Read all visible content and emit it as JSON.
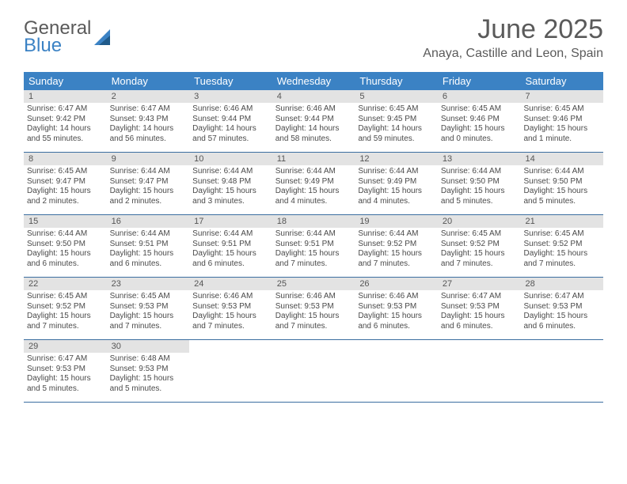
{
  "brand": {
    "line1": "General",
    "line2": "Blue",
    "sail_color": "#3b82c4"
  },
  "header": {
    "month_title": "June 2025",
    "location": "Anaya, Castille and Leon, Spain"
  },
  "colors": {
    "header_bar": "#3b82c4",
    "header_text": "#ffffff",
    "daynum_bg": "#e3e3e3",
    "rule": "#3b6ea0",
    "text": "#4a4a4a"
  },
  "days_of_week": [
    "Sunday",
    "Monday",
    "Tuesday",
    "Wednesday",
    "Thursday",
    "Friday",
    "Saturday"
  ],
  "weeks": [
    [
      {
        "n": "1",
        "sr": "Sunrise: 6:47 AM",
        "ss": "Sunset: 9:42 PM",
        "dl": "Daylight: 14 hours and 55 minutes."
      },
      {
        "n": "2",
        "sr": "Sunrise: 6:47 AM",
        "ss": "Sunset: 9:43 PM",
        "dl": "Daylight: 14 hours and 56 minutes."
      },
      {
        "n": "3",
        "sr": "Sunrise: 6:46 AM",
        "ss": "Sunset: 9:44 PM",
        "dl": "Daylight: 14 hours and 57 minutes."
      },
      {
        "n": "4",
        "sr": "Sunrise: 6:46 AM",
        "ss": "Sunset: 9:44 PM",
        "dl": "Daylight: 14 hours and 58 minutes."
      },
      {
        "n": "5",
        "sr": "Sunrise: 6:45 AM",
        "ss": "Sunset: 9:45 PM",
        "dl": "Daylight: 14 hours and 59 minutes."
      },
      {
        "n": "6",
        "sr": "Sunrise: 6:45 AM",
        "ss": "Sunset: 9:46 PM",
        "dl": "Daylight: 15 hours and 0 minutes."
      },
      {
        "n": "7",
        "sr": "Sunrise: 6:45 AM",
        "ss": "Sunset: 9:46 PM",
        "dl": "Daylight: 15 hours and 1 minute."
      }
    ],
    [
      {
        "n": "8",
        "sr": "Sunrise: 6:45 AM",
        "ss": "Sunset: 9:47 PM",
        "dl": "Daylight: 15 hours and 2 minutes."
      },
      {
        "n": "9",
        "sr": "Sunrise: 6:44 AM",
        "ss": "Sunset: 9:47 PM",
        "dl": "Daylight: 15 hours and 2 minutes."
      },
      {
        "n": "10",
        "sr": "Sunrise: 6:44 AM",
        "ss": "Sunset: 9:48 PM",
        "dl": "Daylight: 15 hours and 3 minutes."
      },
      {
        "n": "11",
        "sr": "Sunrise: 6:44 AM",
        "ss": "Sunset: 9:49 PM",
        "dl": "Daylight: 15 hours and 4 minutes."
      },
      {
        "n": "12",
        "sr": "Sunrise: 6:44 AM",
        "ss": "Sunset: 9:49 PM",
        "dl": "Daylight: 15 hours and 4 minutes."
      },
      {
        "n": "13",
        "sr": "Sunrise: 6:44 AM",
        "ss": "Sunset: 9:50 PM",
        "dl": "Daylight: 15 hours and 5 minutes."
      },
      {
        "n": "14",
        "sr": "Sunrise: 6:44 AM",
        "ss": "Sunset: 9:50 PM",
        "dl": "Daylight: 15 hours and 5 minutes."
      }
    ],
    [
      {
        "n": "15",
        "sr": "Sunrise: 6:44 AM",
        "ss": "Sunset: 9:50 PM",
        "dl": "Daylight: 15 hours and 6 minutes."
      },
      {
        "n": "16",
        "sr": "Sunrise: 6:44 AM",
        "ss": "Sunset: 9:51 PM",
        "dl": "Daylight: 15 hours and 6 minutes."
      },
      {
        "n": "17",
        "sr": "Sunrise: 6:44 AM",
        "ss": "Sunset: 9:51 PM",
        "dl": "Daylight: 15 hours and 6 minutes."
      },
      {
        "n": "18",
        "sr": "Sunrise: 6:44 AM",
        "ss": "Sunset: 9:51 PM",
        "dl": "Daylight: 15 hours and 7 minutes."
      },
      {
        "n": "19",
        "sr": "Sunrise: 6:44 AM",
        "ss": "Sunset: 9:52 PM",
        "dl": "Daylight: 15 hours and 7 minutes."
      },
      {
        "n": "20",
        "sr": "Sunrise: 6:45 AM",
        "ss": "Sunset: 9:52 PM",
        "dl": "Daylight: 15 hours and 7 minutes."
      },
      {
        "n": "21",
        "sr": "Sunrise: 6:45 AM",
        "ss": "Sunset: 9:52 PM",
        "dl": "Daylight: 15 hours and 7 minutes."
      }
    ],
    [
      {
        "n": "22",
        "sr": "Sunrise: 6:45 AM",
        "ss": "Sunset: 9:52 PM",
        "dl": "Daylight: 15 hours and 7 minutes."
      },
      {
        "n": "23",
        "sr": "Sunrise: 6:45 AM",
        "ss": "Sunset: 9:53 PM",
        "dl": "Daylight: 15 hours and 7 minutes."
      },
      {
        "n": "24",
        "sr": "Sunrise: 6:46 AM",
        "ss": "Sunset: 9:53 PM",
        "dl": "Daylight: 15 hours and 7 minutes."
      },
      {
        "n": "25",
        "sr": "Sunrise: 6:46 AM",
        "ss": "Sunset: 9:53 PM",
        "dl": "Daylight: 15 hours and 7 minutes."
      },
      {
        "n": "26",
        "sr": "Sunrise: 6:46 AM",
        "ss": "Sunset: 9:53 PM",
        "dl": "Daylight: 15 hours and 6 minutes."
      },
      {
        "n": "27",
        "sr": "Sunrise: 6:47 AM",
        "ss": "Sunset: 9:53 PM",
        "dl": "Daylight: 15 hours and 6 minutes."
      },
      {
        "n": "28",
        "sr": "Sunrise: 6:47 AM",
        "ss": "Sunset: 9:53 PM",
        "dl": "Daylight: 15 hours and 6 minutes."
      }
    ],
    [
      {
        "n": "29",
        "sr": "Sunrise: 6:47 AM",
        "ss": "Sunset: 9:53 PM",
        "dl": "Daylight: 15 hours and 5 minutes."
      },
      {
        "n": "30",
        "sr": "Sunrise: 6:48 AM",
        "ss": "Sunset: 9:53 PM",
        "dl": "Daylight: 15 hours and 5 minutes."
      },
      null,
      null,
      null,
      null,
      null
    ]
  ]
}
